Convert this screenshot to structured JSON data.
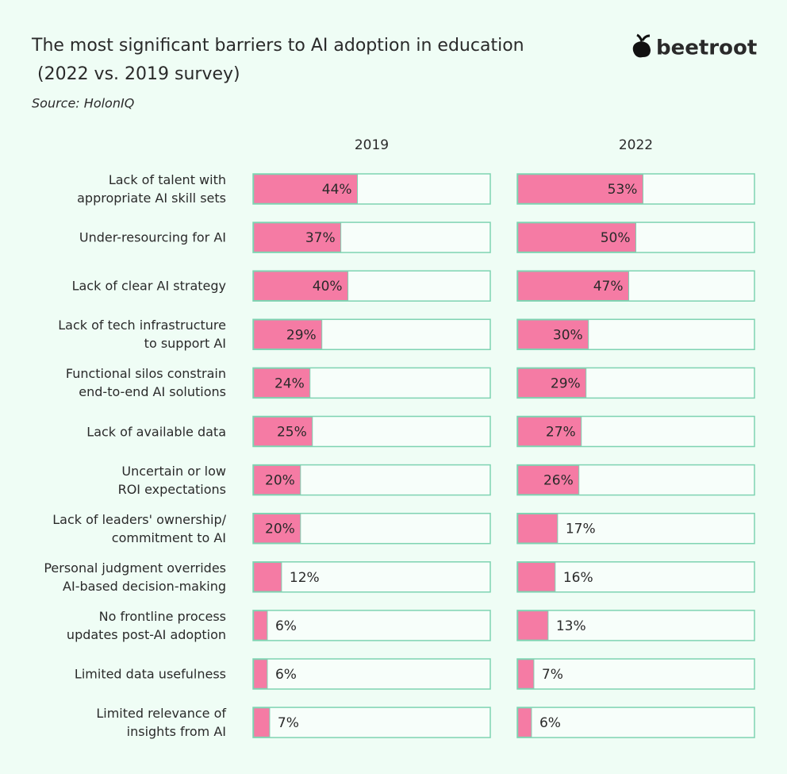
{
  "chart_data": {
    "type": "bar",
    "orientation": "horizontal",
    "title": "The most significant barriers to AI adoption in education\n(2022 vs. 2019 survey)",
    "subtitle": "Source: HolonIQ",
    "logo_text": "beetroot",
    "categories": [
      "Lack of talent with\nappropriate AI skill sets",
      "Under-resourcing for AI",
      "Lack of clear AI strategy",
      "Lack of tech infrastructure\nto support AI",
      "Functional silos constrain\nend-to-end AI solutions",
      "Lack of available data",
      "Uncertain or low\nROI expectations",
      "Lack of leaders' ownership/\ncommitment to AI",
      "Personal judgment overrides\nAI-based decision-making",
      "No frontline process\nupdates post-AI adoption",
      "Limited data usefulness",
      "Limited relevance of\ninsights from AI"
    ],
    "xlim": [
      0,
      100
    ],
    "series": [
      {
        "name": "2019",
        "color": "#f57ba4",
        "values": [
          44,
          37,
          40,
          29,
          24,
          25,
          20,
          20,
          12,
          6,
          6,
          7
        ],
        "value_labels": [
          "44%",
          "37%",
          "40%",
          "29%",
          "24%",
          "25%",
          "20%",
          "20%",
          "12%",
          "6%",
          "6%",
          "7%"
        ]
      },
      {
        "name": "2022",
        "color": "#f57ba4",
        "values": [
          53,
          50,
          47,
          30,
          29,
          27,
          26,
          17,
          16,
          13,
          7,
          6
        ],
        "value_labels": [
          "53%",
          "50%",
          "47%",
          "30%",
          "29%",
          "27%",
          "26%",
          "17%",
          "16%",
          "13%",
          "7%",
          "6%"
        ]
      }
    ]
  }
}
